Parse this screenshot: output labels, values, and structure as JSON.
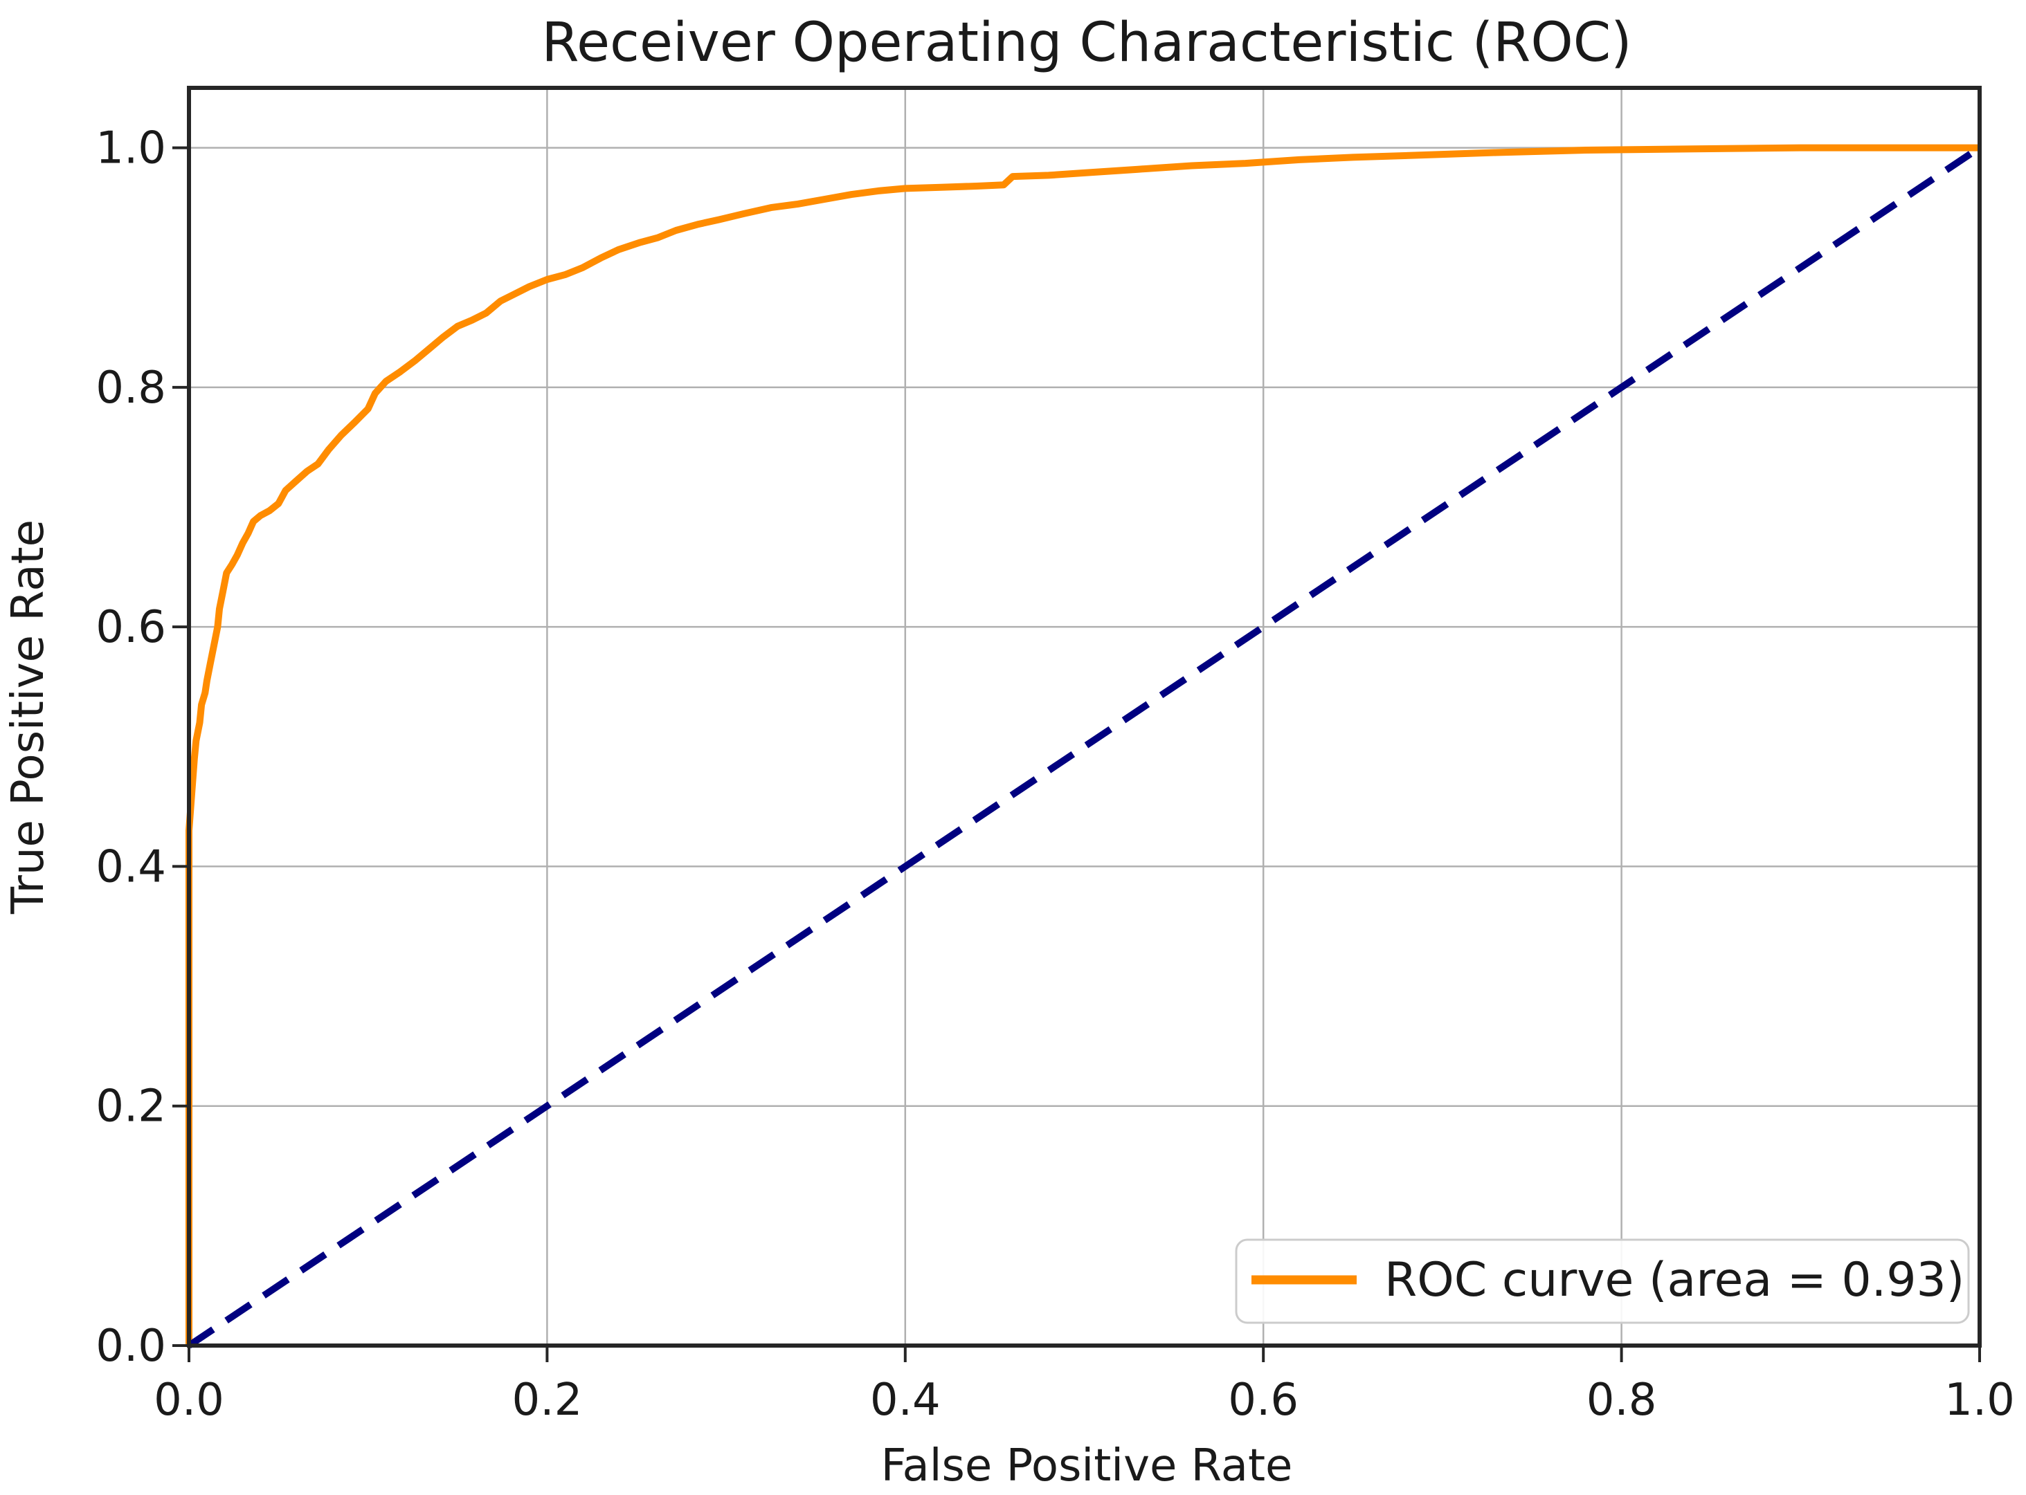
{
  "chart_data": {
    "type": "line",
    "title": "Receiver Operating Characteristic (ROC)",
    "xlabel": "False Positive Rate",
    "ylabel": "True Positive Rate",
    "xlim": [
      0.0,
      1.0
    ],
    "ylim": [
      0.0,
      1.05
    ],
    "xticks": [
      "0.0",
      "0.2",
      "0.4",
      "0.6",
      "0.8",
      "1.0"
    ],
    "yticks": [
      "0.0",
      "0.2",
      "0.4",
      "0.6",
      "0.8",
      "1.0"
    ],
    "grid": true,
    "grid_color": "#b0b0b0",
    "spine_color": "#262626",
    "background_color": "#ffffff",
    "legend": {
      "position": "lower right",
      "entries": [
        {
          "label": "ROC curve (area = 0.93)",
          "color": "#ff8c00",
          "style": "solid"
        }
      ]
    },
    "auc": "0.93",
    "series": [
      {
        "name": "ROC curve",
        "color": "#ff8c00",
        "style": "solid",
        "points": [
          [
            0.0,
            0.0
          ],
          [
            0.0,
            0.43
          ],
          [
            0.002,
            0.47
          ],
          [
            0.003,
            0.49
          ],
          [
            0.004,
            0.505
          ],
          [
            0.006,
            0.52
          ],
          [
            0.007,
            0.535
          ],
          [
            0.009,
            0.545
          ],
          [
            0.01,
            0.555
          ],
          [
            0.012,
            0.57
          ],
          [
            0.014,
            0.585
          ],
          [
            0.016,
            0.6
          ],
          [
            0.017,
            0.615
          ],
          [
            0.019,
            0.63
          ],
          [
            0.021,
            0.645
          ],
          [
            0.024,
            0.652
          ],
          [
            0.027,
            0.66
          ],
          [
            0.03,
            0.67
          ],
          [
            0.033,
            0.678
          ],
          [
            0.036,
            0.688
          ],
          [
            0.04,
            0.693
          ],
          [
            0.045,
            0.697
          ],
          [
            0.05,
            0.703
          ],
          [
            0.054,
            0.714
          ],
          [
            0.06,
            0.722
          ],
          [
            0.066,
            0.73
          ],
          [
            0.072,
            0.736
          ],
          [
            0.078,
            0.748
          ],
          [
            0.085,
            0.76
          ],
          [
            0.092,
            0.77
          ],
          [
            0.1,
            0.782
          ],
          [
            0.104,
            0.795
          ],
          [
            0.11,
            0.805
          ],
          [
            0.118,
            0.813
          ],
          [
            0.126,
            0.822
          ],
          [
            0.134,
            0.832
          ],
          [
            0.142,
            0.842
          ],
          [
            0.15,
            0.851
          ],
          [
            0.158,
            0.856
          ],
          [
            0.166,
            0.862
          ],
          [
            0.174,
            0.872
          ],
          [
            0.182,
            0.878
          ],
          [
            0.19,
            0.884
          ],
          [
            0.2,
            0.89
          ],
          [
            0.21,
            0.894
          ],
          [
            0.22,
            0.9
          ],
          [
            0.23,
            0.908
          ],
          [
            0.24,
            0.915
          ],
          [
            0.252,
            0.921
          ],
          [
            0.262,
            0.925
          ],
          [
            0.272,
            0.931
          ],
          [
            0.284,
            0.936
          ],
          [
            0.296,
            0.94
          ],
          [
            0.31,
            0.945
          ],
          [
            0.325,
            0.95
          ],
          [
            0.34,
            0.953
          ],
          [
            0.355,
            0.957
          ],
          [
            0.37,
            0.961
          ],
          [
            0.385,
            0.964
          ],
          [
            0.4,
            0.966
          ],
          [
            0.42,
            0.967
          ],
          [
            0.44,
            0.968
          ],
          [
            0.455,
            0.969
          ],
          [
            0.46,
            0.976
          ],
          [
            0.48,
            0.977
          ],
          [
            0.5,
            0.979
          ],
          [
            0.53,
            0.982
          ],
          [
            0.56,
            0.985
          ],
          [
            0.59,
            0.987
          ],
          [
            0.62,
            0.99
          ],
          [
            0.65,
            0.992
          ],
          [
            0.69,
            0.994
          ],
          [
            0.73,
            0.996
          ],
          [
            0.78,
            0.998
          ],
          [
            0.84,
            0.999
          ],
          [
            0.9,
            1.0
          ],
          [
            1.0,
            1.0
          ]
        ]
      },
      {
        "name": "chance diagonal",
        "color": "#000080",
        "style": "dashed",
        "points": [
          [
            0.0,
            0.0
          ],
          [
            1.0,
            1.0
          ]
        ]
      }
    ]
  }
}
